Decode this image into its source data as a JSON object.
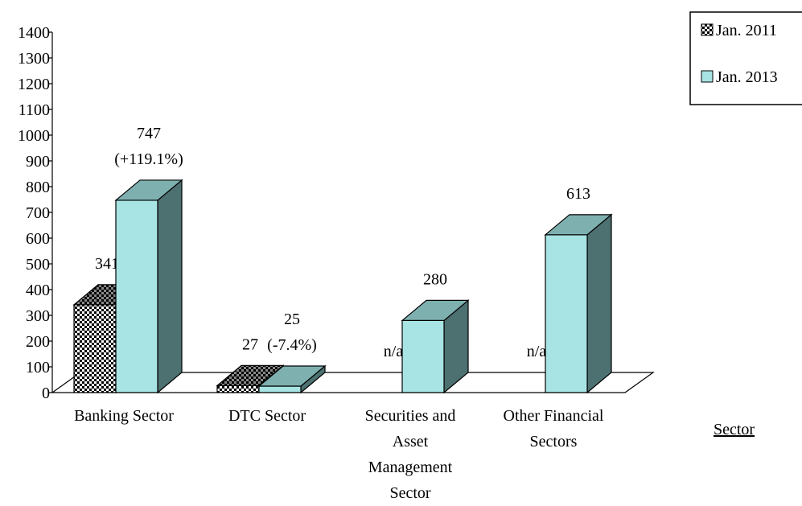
{
  "chart_data": {
    "type": "bar3d",
    "categories": [
      "Banking Sector",
      "DTC Sector",
      "Securities and Asset Management Sector",
      "Other Financial Sectors"
    ],
    "series": [
      {
        "name": "Jan. 2011",
        "color": "#000000",
        "pattern": "checker",
        "values": [
          341,
          27,
          null,
          null
        ],
        "value_labels": [
          "341",
          "27",
          "n/a",
          "n/a"
        ]
      },
      {
        "name": "Jan. 2013",
        "color": "#a8e4e4",
        "values": [
          747,
          25,
          280,
          613
        ],
        "value_labels": [
          "747 (+119.1%)",
          "25 (-7.4%)",
          "280",
          "613"
        ]
      }
    ],
    "x_label": "Sector",
    "ylim": [
      0,
      1400
    ],
    "yticks": [
      0,
      100,
      200,
      300,
      400,
      500,
      600,
      700,
      800,
      900,
      1000,
      1100,
      1200,
      1300,
      1400
    ],
    "legend": "top-right"
  }
}
